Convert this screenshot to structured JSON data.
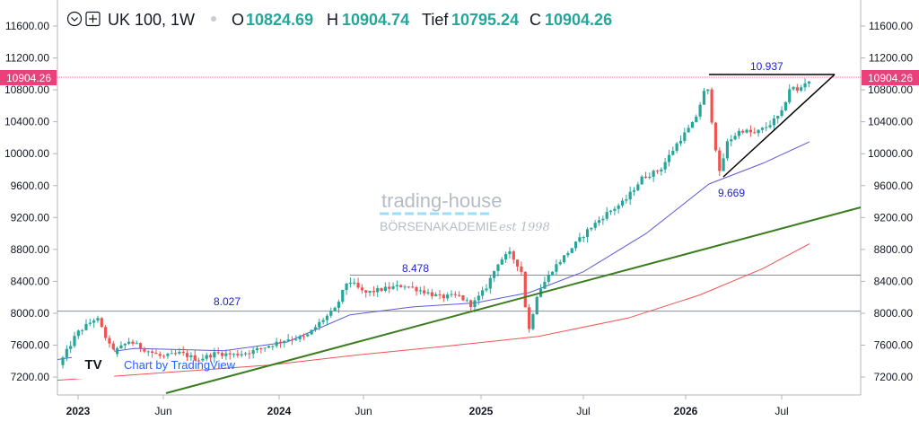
{
  "header": {
    "symbol": "UK 100, 1W",
    "open_label": "O",
    "open_value": "10824.69",
    "high_label": "H",
    "high_value": "10904.74",
    "low_label": "Tief",
    "low_value": "10795.24",
    "close_label": "C",
    "close_value": "10904.26",
    "value_color": "#26a69a",
    "icons": [
      "chevron-down-icon",
      "add-icon"
    ]
  },
  "price_badge": {
    "left": "10904.26",
    "right": "10904.26",
    "color": "#ec407a"
  },
  "watermark": {
    "brand": "trading-house",
    "sub": "BÖRSENAKADEMIE",
    "est": "est 1998"
  },
  "tradingview": {
    "text": "Chart by TradingView",
    "logo_text": "TV"
  },
  "chart_data": {
    "type": "candlestick",
    "y_ticks": [
      "11600.00",
      "11200.00",
      "10800.00",
      "10400.00",
      "10000.00",
      "9600.00",
      "9200.00",
      "8800.00",
      "8400.00",
      "8000.00",
      "7600.00",
      "7200.00"
    ],
    "x_ticks": [
      {
        "label": "2023",
        "bold": true
      },
      {
        "label": "Jun",
        "bold": false
      },
      {
        "label": "2024",
        "bold": true
      },
      {
        "label": "Jun",
        "bold": false
      },
      {
        "label": "2025",
        "bold": true
      },
      {
        "label": "Jul",
        "bold": false
      },
      {
        "label": "2026",
        "bold": true
      },
      {
        "label": "Jul",
        "bold": false
      }
    ],
    "ylim": [
      7050,
      11800
    ],
    "annotations": [
      {
        "text": "10.937",
        "level": 10937
      },
      {
        "text": "9.669",
        "level": 9669
      },
      {
        "text": "8.478",
        "level": 8478
      },
      {
        "text": "8.027",
        "level": 8027
      }
    ],
    "levels": [
      10937,
      8478,
      8027
    ],
    "colors": {
      "up": "#26a69a",
      "down": "#ef5350",
      "ma_short": "#5b5bd6",
      "ma_long": "#ef5350",
      "trendline": "#3a7d1e",
      "triangle": "#000000"
    }
  }
}
